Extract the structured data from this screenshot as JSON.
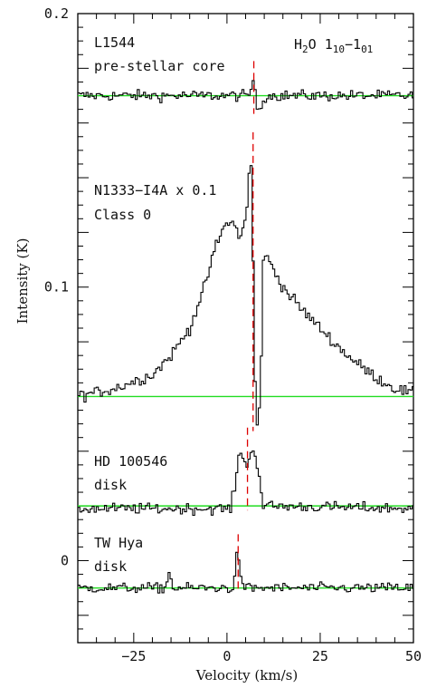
{
  "chart_data": {
    "type": "line",
    "xlabel": "Velocity (km/s)",
    "ylabel": "Intensity (K)",
    "xlim": [
      -40,
      50
    ],
    "ylim": [
      -0.03,
      0.2
    ],
    "x_ticks": [
      -25,
      0,
      25,
      50
    ],
    "x_tick_labels": [
      "−25",
      "0",
      "25",
      "50"
    ],
    "y_ticks": [
      0,
      0.1,
      0.2
    ],
    "y_tick_labels": [
      "0",
      "0.1",
      "0.2"
    ],
    "title_line": {
      "base": "H",
      "sub1": "2",
      "mid": "O 1",
      "sub2": "10",
      "dash": "−1",
      "sub3": "01"
    },
    "grid": false,
    "series": [
      {
        "name": "L1544",
        "subtitle": "pre-stellar core",
        "baseline": 0.17,
        "noise": 0.0014,
        "reference_velocity": 7.2,
        "points": [
          [
            -40,
            0.17
          ],
          [
            6.0,
            0.17
          ],
          [
            7.0,
            0.176
          ],
          [
            7.6,
            0.17
          ],
          [
            8.4,
            0.164
          ],
          [
            9.3,
            0.167
          ],
          [
            10.5,
            0.17
          ],
          [
            50,
            0.17
          ]
        ]
      },
      {
        "name": "N1333−I4A x 0.1",
        "subtitle": "Class 0",
        "baseline": 0.06,
        "noise": 0.0015,
        "reference_velocity": 7.0,
        "points": [
          [
            -40,
            0.06
          ],
          [
            -30,
            0.063
          ],
          [
            -20,
            0.068
          ],
          [
            -15,
            0.075
          ],
          [
            -10,
            0.085
          ],
          [
            -6,
            0.1
          ],
          [
            -3,
            0.115
          ],
          [
            0,
            0.124
          ],
          [
            2,
            0.123
          ],
          [
            3.5,
            0.118
          ],
          [
            4.5,
            0.122
          ],
          [
            5.5,
            0.13
          ],
          [
            6.3,
            0.15
          ],
          [
            6.8,
            0.135
          ],
          [
            7.2,
            0.09
          ],
          [
            7.8,
            0.05
          ],
          [
            8.5,
            0.048
          ],
          [
            9.2,
            0.075
          ],
          [
            9.8,
            0.112
          ],
          [
            12,
            0.108
          ],
          [
            15,
            0.1
          ],
          [
            20,
            0.092
          ],
          [
            25,
            0.085
          ],
          [
            30,
            0.078
          ],
          [
            35,
            0.072
          ],
          [
            40,
            0.067
          ],
          [
            45,
            0.063
          ],
          [
            50,
            0.061
          ]
        ]
      },
      {
        "name": "HD 100546",
        "subtitle": "disk",
        "baseline": 0.02,
        "noise": 0.0014,
        "reference_velocity": 5.5,
        "points": [
          [
            -40,
            0.019
          ],
          [
            1,
            0.019
          ],
          [
            2.5,
            0.03
          ],
          [
            3.5,
            0.041
          ],
          [
            4.5,
            0.038
          ],
          [
            5.3,
            0.034
          ],
          [
            6.3,
            0.038
          ],
          [
            7.3,
            0.042
          ],
          [
            8.5,
            0.032
          ],
          [
            9.8,
            0.02
          ],
          [
            50,
            0.019
          ]
        ]
      },
      {
        "name": "TW Hya",
        "subtitle": "disk",
        "baseline": -0.01,
        "noise": 0.0013,
        "reference_velocity": 3.0,
        "points": [
          [
            -40,
            -0.01
          ],
          [
            -16.5,
            -0.01
          ],
          [
            -15.5,
            -0.004
          ],
          [
            -14.5,
            -0.01
          ],
          [
            1.8,
            -0.01
          ],
          [
            2.6,
            0.001
          ],
          [
            3.0,
            0.003
          ],
          [
            3.5,
            -0.002
          ],
          [
            4.2,
            -0.01
          ],
          [
            50,
            -0.01
          ]
        ]
      }
    ],
    "baseline_color": "#22dd22",
    "spectrum_color": "#000000",
    "reference_line_color": "#dd0000"
  }
}
